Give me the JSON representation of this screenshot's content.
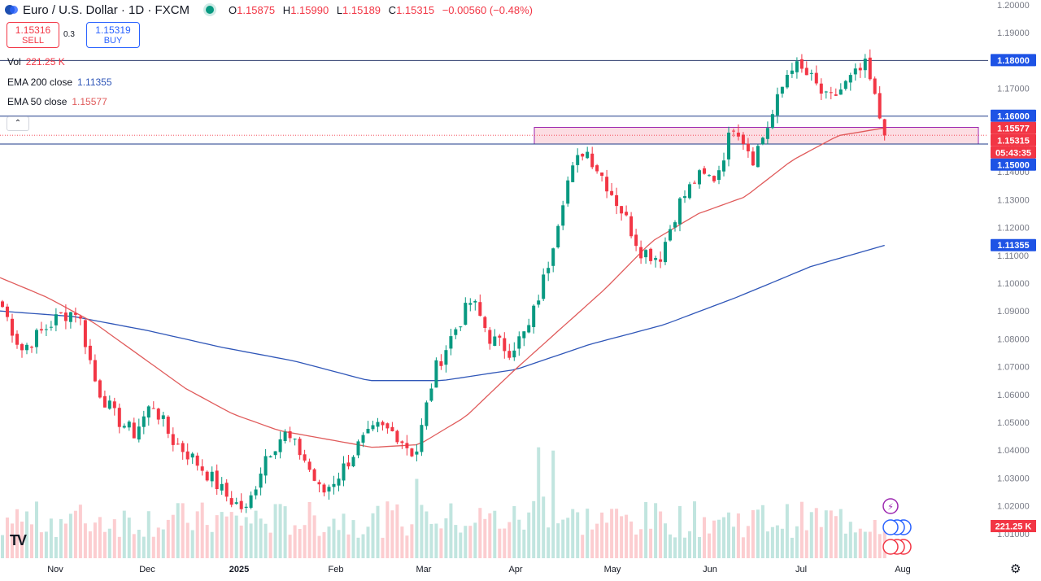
{
  "header": {
    "symbol": "Euro / U.S. Dollar · 1D · FXCM",
    "open_label": "O",
    "open": "1.15875",
    "high_label": "H",
    "high": "1.15990",
    "low_label": "L",
    "low": "1.15189",
    "close_label": "C",
    "close": "1.15315",
    "change": "−0.00560 (−0.48%)"
  },
  "trade": {
    "sell_price": "1.15316",
    "sell_label": "SELL",
    "spread": "0.3",
    "buy_price": "1.15319",
    "buy_label": "BUY"
  },
  "indicators": {
    "vol_label": "Vol",
    "vol_value": "221.25 K",
    "ema200_label": "EMA 200 close",
    "ema200_value": "1.11355",
    "ema50_label": "EMA 50 close",
    "ema50_value": "1.15577"
  },
  "colors": {
    "up": "#089981",
    "down": "#f23645",
    "ema50": "#e05b5b",
    "ema200": "#2f56b8",
    "zone_fill": "#fbd7de",
    "zone_stroke": "#9c27b0",
    "line": "#2a3a6b"
  },
  "chart_data": {
    "type": "candlestick",
    "title": "Euro / U.S. Dollar · 1D · FXCM",
    "ylim": [
      1.01,
      1.2
    ],
    "y_ticks": [
      "1.01000",
      "1.02000",
      "1.03000",
      "1.04000",
      "1.05000",
      "1.06000",
      "1.07000",
      "1.08000",
      "1.09000",
      "1.10000",
      "1.11000",
      "1.12000",
      "1.13000",
      "1.14000",
      "1.15000",
      "1.16000",
      "1.17000",
      "1.18000",
      "1.19000",
      "1.20000"
    ],
    "x_labels": [
      "Nov",
      "Dec",
      "2025",
      "Feb",
      "Mar",
      "Apr",
      "May",
      "Jun",
      "Jul",
      "Aug"
    ],
    "price_labels": [
      {
        "text": "1.18000",
        "value": 1.18,
        "color": "#1e53e5"
      },
      {
        "text": "1.16000",
        "value": 1.16,
        "color": "#1e53e5"
      },
      {
        "text": "1.15577",
        "value": 1.15577,
        "color": "#f23645"
      },
      {
        "text": "1.15315",
        "value": 1.15315,
        "color": "#f23645"
      },
      {
        "text": "05:43:35",
        "value": 1.1518,
        "color": "#f23645"
      },
      {
        "text": "1.15000",
        "value": 1.15,
        "color": "#1e53e5"
      },
      {
        "text": "1.11355",
        "value": 1.11355,
        "color": "#1e53e5"
      }
    ],
    "volume_label": "221.25 K",
    "horizontal_lines": [
      1.18,
      1.16,
      1.15
    ],
    "zone": {
      "from_month": "Apr",
      "top": 1.156,
      "bottom": 1.15
    },
    "key_prices": [
      1.0915,
      1.076,
      1.082,
      1.088,
      1.0905,
      1.063,
      1.052,
      1.046,
      1.057,
      1.044,
      1.038,
      1.031,
      1.023,
      1.018,
      1.038,
      1.046,
      1.038,
      1.024,
      1.032,
      1.042,
      1.048,
      1.046,
      1.038,
      1.068,
      1.082,
      1.094,
      1.08,
      1.076,
      1.083,
      1.105,
      1.135,
      1.149,
      1.138,
      1.126,
      1.112,
      1.109,
      1.128,
      1.138,
      1.138,
      1.158,
      1.145,
      1.16,
      1.179,
      1.174,
      1.165,
      1.172,
      1.178,
      1.1531
    ],
    "ema50": [
      1.102,
      1.095,
      1.086,
      1.074,
      1.062,
      1.053,
      1.047,
      1.044,
      1.041,
      1.042,
      1.052,
      1.068,
      1.083,
      1.098,
      1.115,
      1.125,
      1.131,
      1.144,
      1.153,
      1.1558
    ],
    "ema200": [
      1.09,
      1.088,
      1.083,
      1.077,
      1.072,
      1.065,
      1.065,
      1.069,
      1.078,
      1.085,
      1.095,
      1.106,
      1.1136
    ]
  }
}
